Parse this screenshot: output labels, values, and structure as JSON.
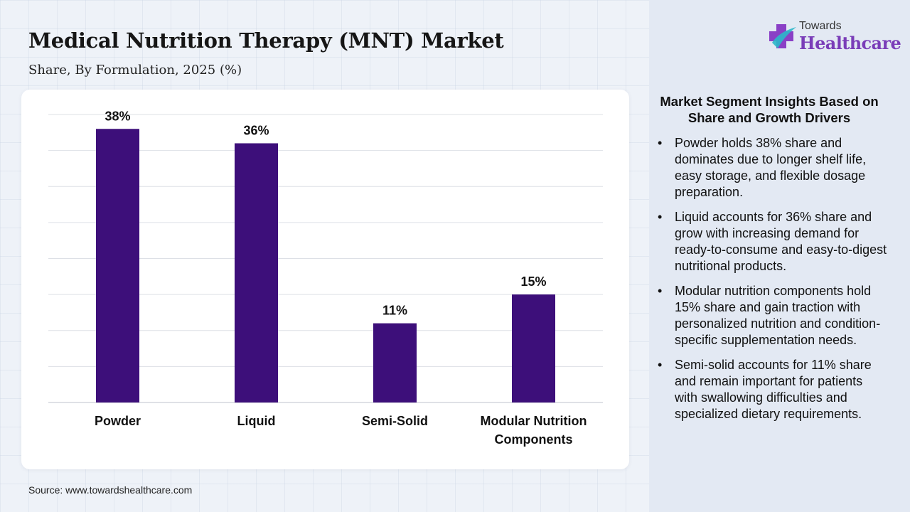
{
  "header": {
    "title": "Medical Nutrition Therapy (MNT) Market",
    "subtitle": "Share, By Formulation, 2025 (%)"
  },
  "brand": {
    "top": "Towards",
    "main": "Healthcare",
    "accent": "#7a3db8"
  },
  "source": "Source: www.towardshealthcare.com",
  "chart_data": {
    "type": "bar",
    "categories": [
      "Powder",
      "Liquid",
      "Semi-Solid",
      "Modular Nutrition Components"
    ],
    "values": [
      38,
      36,
      11,
      15
    ],
    "value_labels": [
      "38%",
      "36%",
      "11%",
      "15%"
    ],
    "ylim": [
      0,
      40
    ],
    "unit": "%",
    "grid": true,
    "bar_color": "#3d0f7a",
    "title": "",
    "xlabel": "",
    "ylabel": ""
  },
  "insights": {
    "heading": "Market Segment Insights Based on Share and Growth Drivers",
    "bullet": "•",
    "items": [
      "Powder holds 38% share and dominates due to longer shelf life, easy storage, and flexible dosage preparation.",
      "Liquid accounts for 36% share and grow with increasing demand for ready-to-consume and easy-to-digest nutritional products.",
      "Modular nutrition components hold 15% share and gain traction with personalized nutrition and condition-specific supplementation needs.",
      "Semi-solid accounts for 11% share and remain important for patients with swallowing difficulties and specialized dietary requirements."
    ]
  }
}
